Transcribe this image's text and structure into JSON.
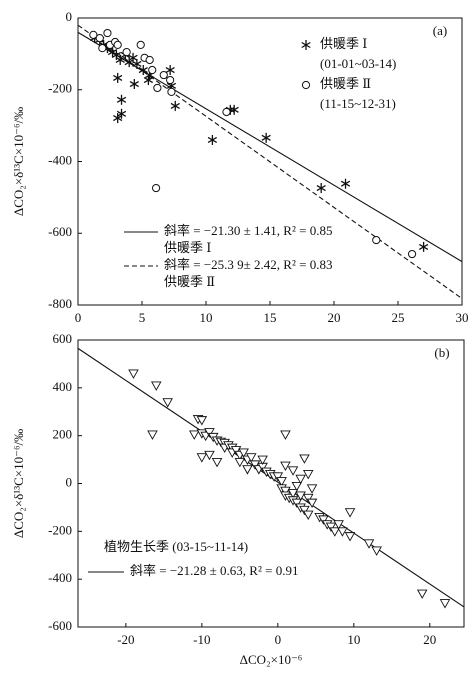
{
  "chart_data": [
    {
      "type": "scatter",
      "panel_label": "(a)",
      "ylabel": "ΔCO₂×δ¹³C×10⁻⁶/‰",
      "xlim": [
        0,
        30
      ],
      "ylim": [
        -800,
        0
      ],
      "xticks": [
        0,
        5,
        10,
        15,
        20,
        25,
        30
      ],
      "yticks": [
        0,
        -200,
        -400,
        -600,
        -800
      ],
      "series": [
        {
          "name": "供暖季 Ⅰ",
          "period": "(01-01~03-14)",
          "marker": "asterisk",
          "color": "#111111",
          "x": [
            1.3,
            1.7,
            2.0,
            2.3,
            2.7,
            3.0,
            3.3,
            3.7,
            4.0,
            4.3,
            4.6,
            5.1,
            5.6,
            3.1,
            3.4,
            3.4,
            3.1,
            4.4,
            5.5,
            7.2,
            7.3,
            7.6,
            11.9,
            12.2,
            10.5,
            14.7,
            19.0,
            20.9,
            27.0
          ],
          "values": [
            -56,
            -61,
            -75,
            -84,
            -95,
            -103,
            -117,
            -103,
            -123,
            -111,
            -128,
            -145,
            -159,
            -167,
            -228,
            -267,
            -279,
            -184,
            -173,
            -145,
            -189,
            -245,
            -256,
            -256,
            -340,
            -334,
            -474,
            -462,
            -638
          ]
        },
        {
          "name": "供暖季 Ⅱ",
          "period": "(11-15~12-31)",
          "marker": "circle",
          "color": "#111111",
          "x": [
            1.2,
            1.7,
            2.3,
            1.9,
            2.5,
            2.9,
            3.1,
            3.8,
            4.9,
            5.2,
            5.6,
            5.8,
            6.2,
            6.7,
            7.2,
            7.3,
            6.1,
            11.6,
            23.3,
            26.1
          ],
          "values": [
            -47,
            -56,
            -42,
            -84,
            -75,
            -67,
            -75,
            -95,
            -75,
            -111,
            -117,
            -145,
            -195,
            -159,
            -173,
            -206,
            -474,
            -262,
            -619,
            -658
          ]
        }
      ],
      "fit_lines": [
        {
          "x": [
            0,
            30
          ],
          "values": [
            -40,
            -679
          ],
          "dashed": false,
          "label": "斜率 = −21.30 ± 1.41, R² = 0.85",
          "sublabel": "供暖季 Ⅰ"
        },
        {
          "x": [
            0,
            30
          ],
          "values": [
            -20,
            -782
          ],
          "dashed": true,
          "label": "斜率 = −25.3 9± 2.42, R² = 0.83",
          "sublabel": "供暖季 Ⅱ"
        }
      ]
    },
    {
      "type": "scatter",
      "panel_label": "(b)",
      "ylabel": "ΔCO₂×δ¹³C×10⁻⁶/‰",
      "xlabel": "ΔCO₂×10⁻⁶",
      "xlim": [
        -26.3,
        24.5
      ],
      "ylim": [
        -600,
        600
      ],
      "xticks": [
        -20,
        -10,
        0,
        10,
        20
      ],
      "yticks": [
        600,
        400,
        200,
        0,
        -200,
        -400,
        -600
      ],
      "series": [
        {
          "marker": "triangle",
          "color": "#111111",
          "x": [
            -19,
            -16,
            -14.5,
            -16.5,
            -10.5,
            -10,
            -11,
            -10,
            -9.5,
            -9,
            -8.5,
            -8,
            -7.5,
            -7,
            -7,
            -6.5,
            -6,
            -6,
            -5.5,
            -5,
            -4.5,
            -4,
            -4,
            -3.5,
            -3,
            -2.5,
            -2,
            -1.5,
            -1,
            -0.5,
            0,
            0.5,
            -10,
            -9,
            -8,
            -5,
            -2,
            0.5,
            1,
            1,
            1.5,
            2,
            2,
            2.5,
            3,
            3,
            3.5,
            4,
            4,
            4.5,
            1,
            2,
            3.5,
            4,
            1,
            2.5,
            5.5,
            6,
            6.5,
            7,
            7.5,
            8.5,
            8,
            9.5,
            9.5,
            12,
            13,
            19,
            22,
            4.5,
            3
          ],
          "values": [
            460,
            410,
            340,
            205,
            270,
            265,
            205,
            210,
            200,
            215,
            195,
            180,
            175,
            170,
            150,
            160,
            150,
            130,
            140,
            120,
            130,
            100,
            60,
            110,
            80,
            60,
            70,
            50,
            40,
            30,
            30,
            10,
            110,
            120,
            90,
            90,
            100,
            -20,
            -30,
            -50,
            -60,
            -40,
            -70,
            -80,
            -50,
            -100,
            -110,
            -60,
            -130,
            -80,
            75,
            55,
            105,
            40,
            205,
            -10,
            -140,
            -150,
            -170,
            -180,
            -200,
            -200,
            -170,
            -220,
            -120,
            -250,
            -280,
            -460,
            -500,
            -20,
            20
          ]
        }
      ],
      "annotation": "植物生长季 (03-15~11-14)",
      "fit_lines": [
        {
          "x": [
            -26.3,
            24.5
          ],
          "values": [
            565,
            -516
          ],
          "dashed": false,
          "label": "斜率 = −21.28 ± 0.63, R² = 0.91"
        }
      ]
    }
  ]
}
